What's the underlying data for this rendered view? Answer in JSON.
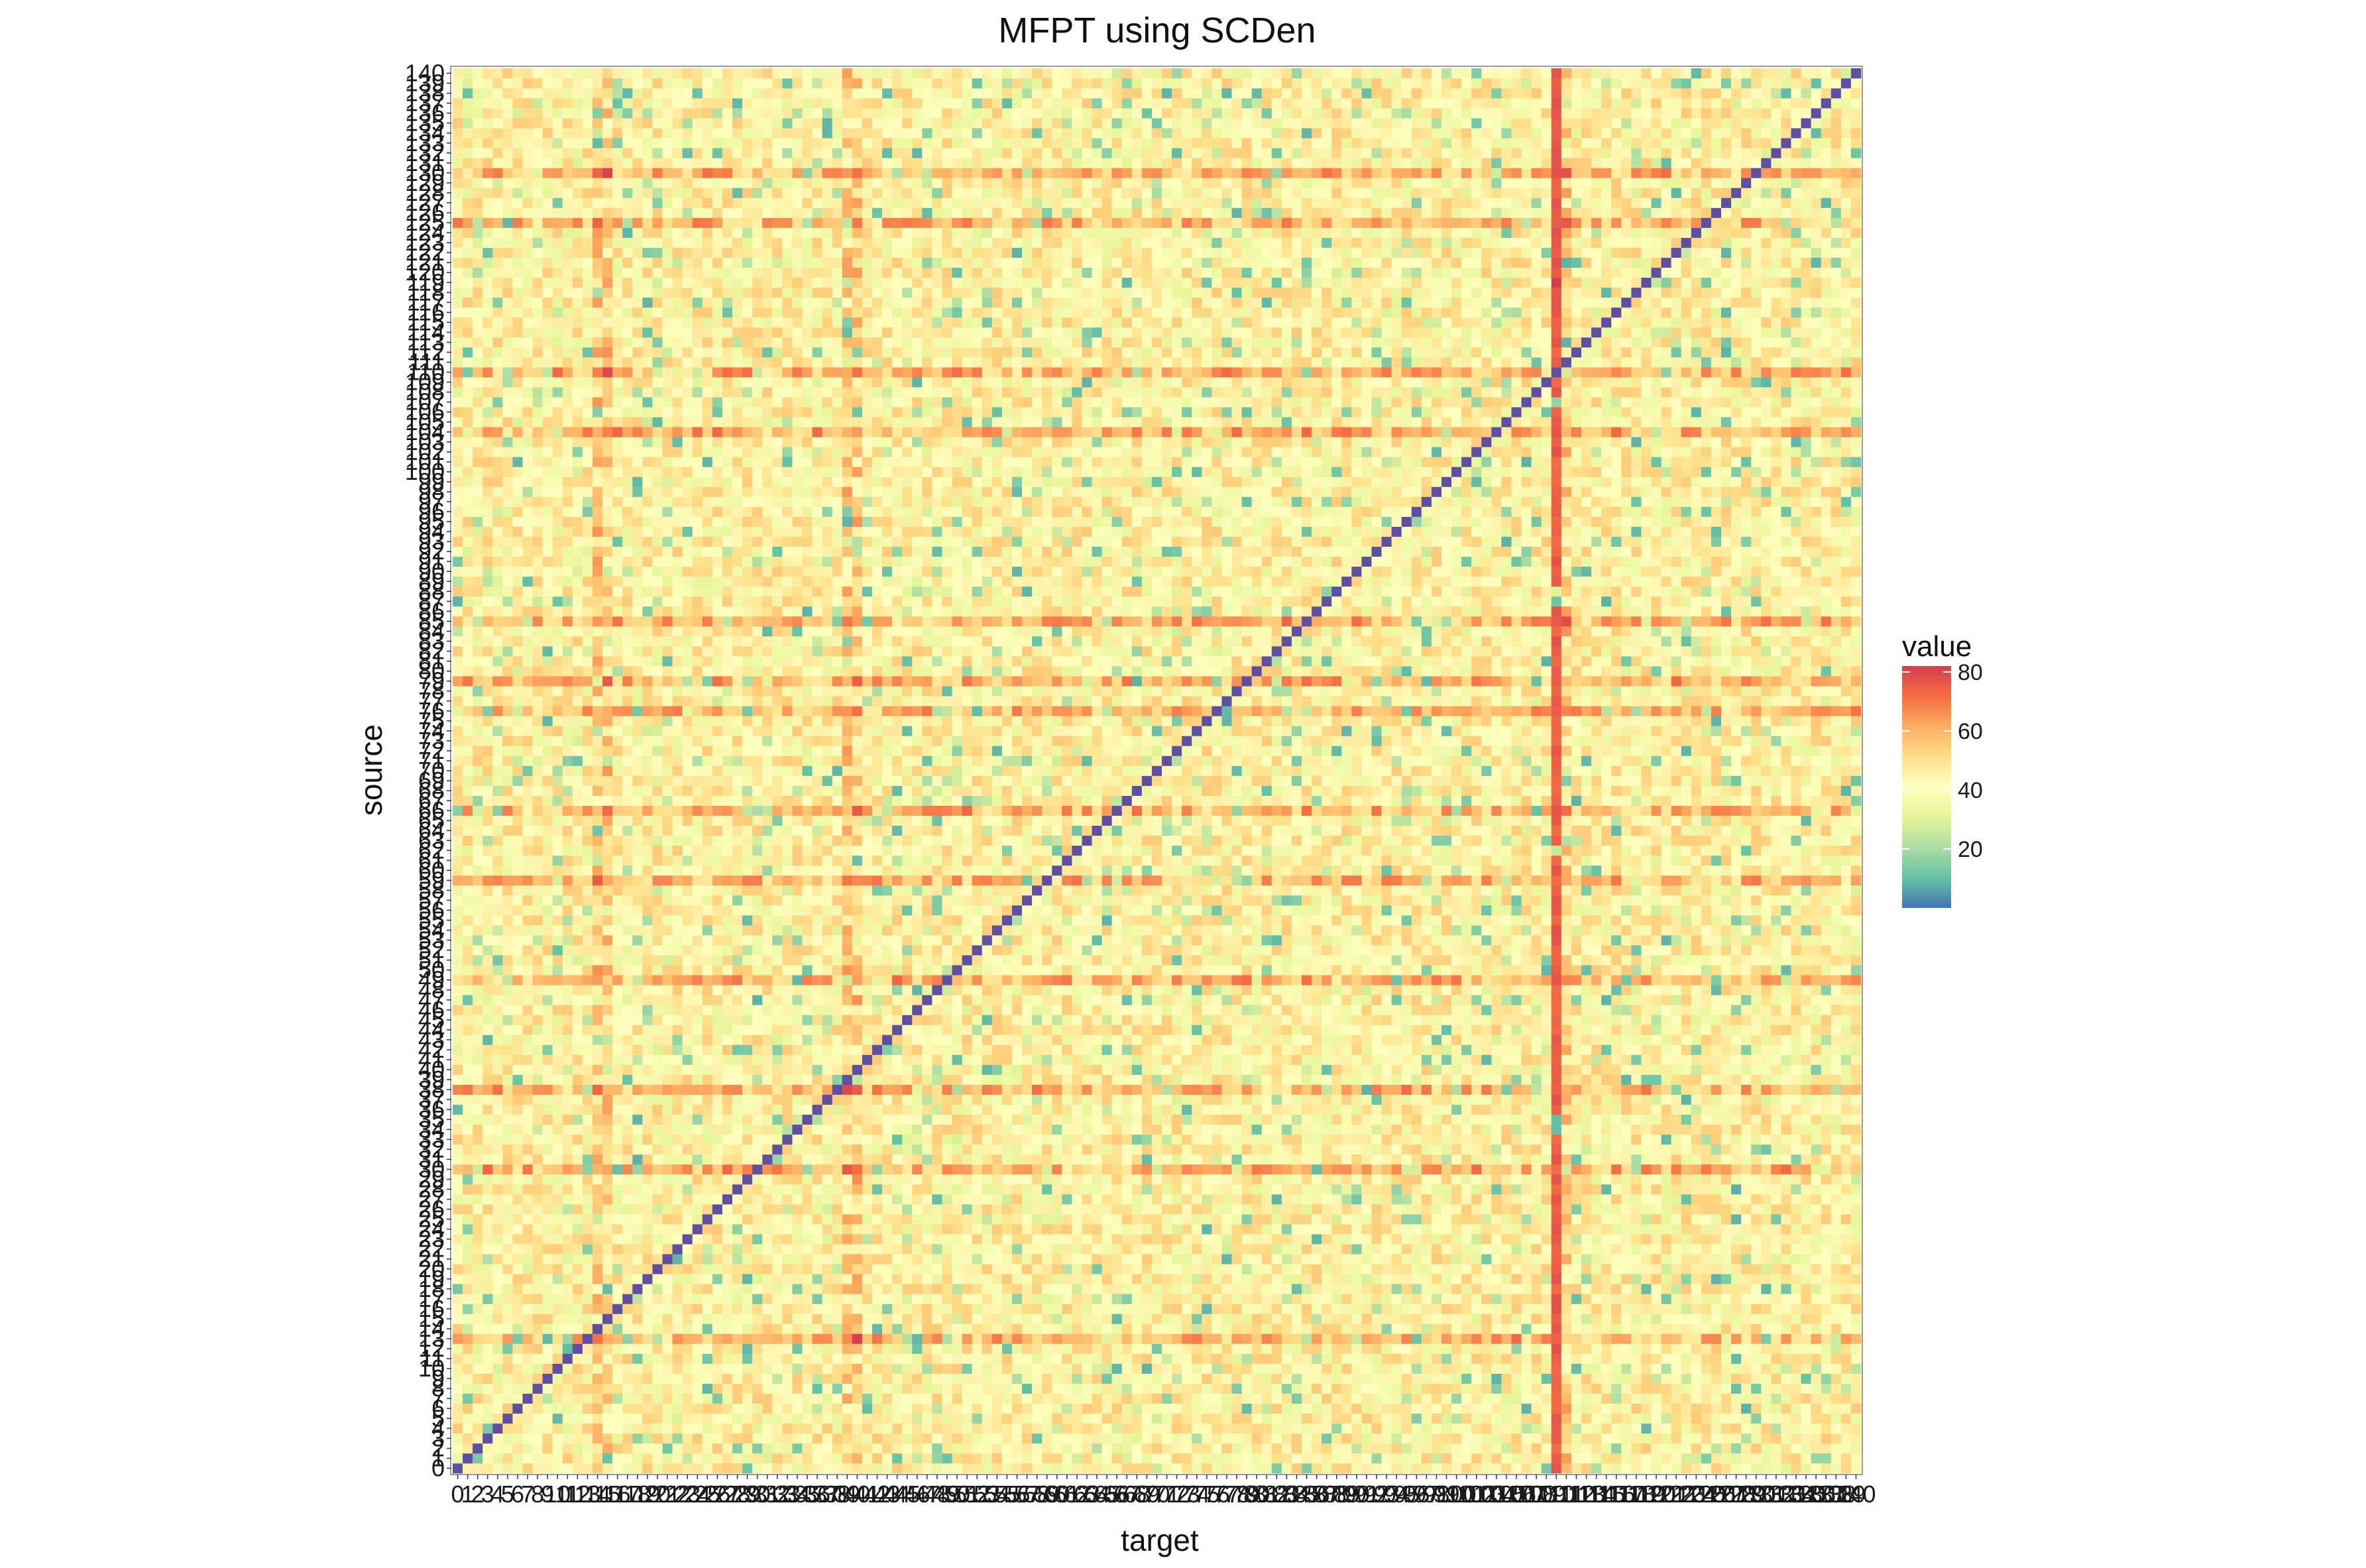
{
  "chart_data": {
    "type": "heatmap",
    "title": "MFPT using SCDen",
    "xlabel": "target",
    "ylabel": "source",
    "n_states": 141,
    "x_categories_range": [
      0,
      140
    ],
    "y_categories_range": [
      0,
      140
    ],
    "value_range": [
      0,
      82
    ],
    "diagonal_value": 0,
    "typical_offdiagonal_range": [
      20,
      70
    ],
    "high_value_rows": [
      13,
      30,
      38,
      49,
      59,
      66,
      76,
      79,
      85,
      104,
      110,
      125,
      130
    ],
    "high_value_columns": [
      14,
      15,
      39,
      40,
      110,
      111
    ],
    "hotspot_column": 110,
    "hotspot_column_values": [
      72,
      78
    ],
    "hotspot_max": {
      "source": 119,
      "target": 110,
      "value": 82
    },
    "legend": {
      "title": "value",
      "ticks": [
        20,
        40,
        60,
        80
      ],
      "colors": [
        "#4575b4",
        "#66c2a5",
        "#abdda4",
        "#e6f598",
        "#ffffbf",
        "#fee08b",
        "#fdae61",
        "#f46d43",
        "#d53e4f"
      ],
      "placement": "right"
    },
    "diagonal_color": "#5e4fa2",
    "grid": false
  }
}
